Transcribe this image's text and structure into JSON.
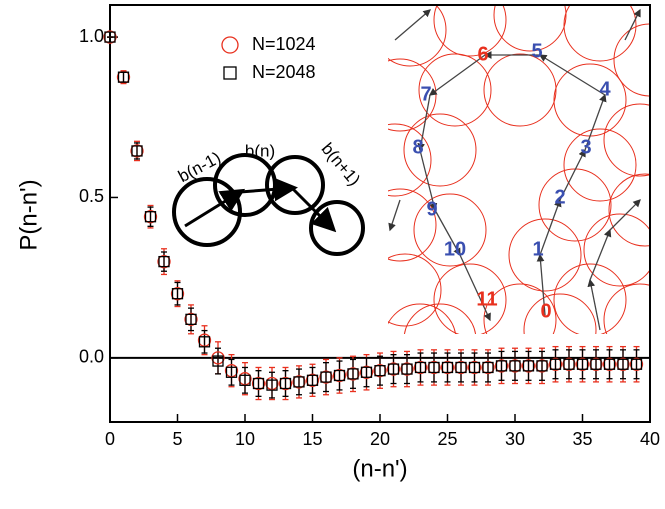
{
  "chart_data": {
    "type": "errorbar",
    "x_label": "(n-n')",
    "y_label": "P(n-n')",
    "xlim": [
      0,
      40
    ],
    "ylim": [
      -0.2,
      1.1
    ],
    "xticks": [
      0,
      5,
      10,
      15,
      20,
      25,
      30,
      35,
      40
    ],
    "yticks": [
      {
        "value": 0,
        "label": "0.0"
      },
      {
        "value": 0.5,
        "label": "0.5"
      },
      {
        "value": 1,
        "label": "1.0"
      }
    ],
    "x": [
      0,
      1,
      2,
      3,
      4,
      5,
      6,
      7,
      8,
      9,
      10,
      11,
      12,
      13,
      14,
      15,
      16,
      17,
      18,
      19,
      20,
      21,
      22,
      23,
      24,
      25,
      26,
      27,
      28,
      29,
      30,
      31,
      32,
      33,
      34,
      35,
      36,
      37,
      38,
      39
    ],
    "series": [
      {
        "name": "N=1024",
        "color": "#e8301e",
        "marker": "circle",
        "values": [
          1.0,
          0.875,
          0.645,
          0.44,
          0.3,
          0.2,
          0.12,
          0.055,
          0.0,
          -0.04,
          -0.065,
          -0.08,
          -0.08,
          -0.08,
          -0.075,
          -0.07,
          -0.06,
          -0.055,
          -0.05,
          -0.045,
          -0.04,
          -0.035,
          -0.035,
          -0.03,
          -0.03,
          -0.03,
          -0.03,
          -0.03,
          -0.03,
          -0.025,
          -0.025,
          -0.025,
          -0.025,
          -0.02,
          -0.02,
          -0.02,
          -0.02,
          -0.02,
          -0.02,
          -0.02
        ],
        "errors": [
          0.0,
          0.02,
          0.03,
          0.035,
          0.04,
          0.04,
          0.045,
          0.045,
          0.05,
          0.05,
          0.05,
          0.05,
          0.05,
          0.05,
          0.05,
          0.05,
          0.055,
          0.055,
          0.055,
          0.055,
          0.055,
          0.055,
          0.055,
          0.055,
          0.055,
          0.055,
          0.055,
          0.055,
          0.055,
          0.055,
          0.055,
          0.055,
          0.055,
          0.055,
          0.055,
          0.055,
          0.055,
          0.055,
          0.055,
          0.055
        ]
      },
      {
        "name": "N=2048",
        "color": "#000000",
        "marker": "square",
        "values": [
          1.0,
          0.875,
          0.645,
          0.44,
          0.3,
          0.2,
          0.12,
          0.05,
          -0.01,
          -0.045,
          -0.07,
          -0.08,
          -0.085,
          -0.08,
          -0.075,
          -0.07,
          -0.06,
          -0.055,
          -0.05,
          -0.045,
          -0.04,
          -0.035,
          -0.035,
          -0.03,
          -0.03,
          -0.03,
          -0.03,
          -0.03,
          -0.03,
          -0.025,
          -0.025,
          -0.025,
          -0.025,
          -0.02,
          -0.02,
          -0.02,
          -0.02,
          -0.02,
          -0.02,
          -0.02
        ],
        "errors": [
          0.0,
          0.015,
          0.025,
          0.03,
          0.03,
          0.035,
          0.035,
          0.035,
          0.04,
          0.04,
          0.04,
          0.04,
          0.04,
          0.04,
          0.04,
          0.04,
          0.045,
          0.045,
          0.045,
          0.045,
          0.045,
          0.045,
          0.045,
          0.045,
          0.045,
          0.045,
          0.045,
          0.045,
          0.045,
          0.045,
          0.045,
          0.045,
          0.045,
          0.045,
          0.045,
          0.045,
          0.045,
          0.045,
          0.045,
          0.045
        ]
      }
    ],
    "legend": "upper center",
    "schematic_labels": [
      "b(n-1)",
      "b(n)",
      "b(n+1)"
    ],
    "inset_labels": [
      "0",
      "1",
      "2",
      "3",
      "4",
      "5",
      "6",
      "7",
      "8",
      "9",
      "10",
      "11"
    ]
  }
}
